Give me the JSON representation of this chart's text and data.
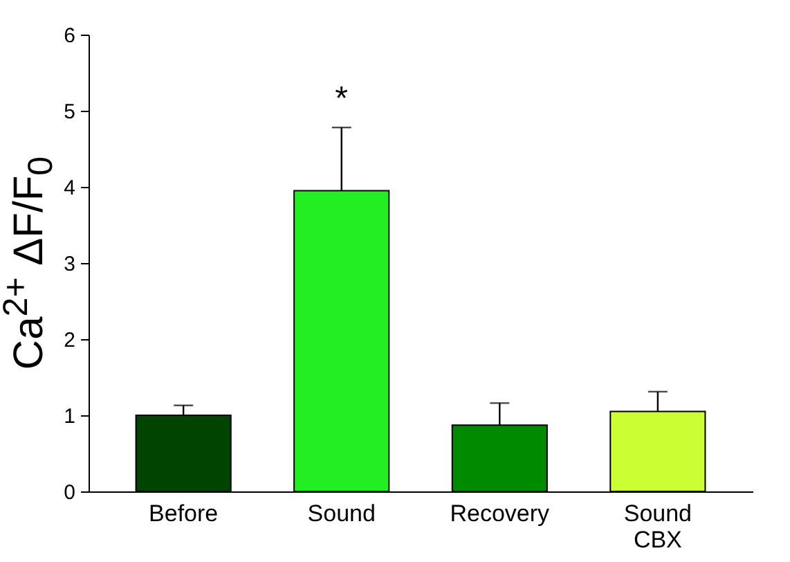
{
  "chart_data": {
    "type": "bar",
    "ylabel": "Ca$^{2+}$ ΔF/F$_{0}$",
    "categories": [
      "Before",
      "Sound",
      "Recovery",
      "Sound CBX"
    ],
    "values": [
      1.0,
      3.95,
      0.87,
      1.05
    ],
    "colors": [
      "#004400",
      "#22ee22",
      "#008a00",
      "#ccff33"
    ],
    "errors": [
      [
        1.0,
        1.13
      ],
      [
        3.95,
        4.78
      ],
      [
        0.87,
        1.16
      ],
      [
        1.05,
        1.31
      ]
    ],
    "ylim": [
      0,
      6
    ],
    "yticks": [
      0,
      1,
      2,
      3,
      4,
      5,
      6
    ],
    "grid": false,
    "annotations": [
      "*"
    ]
  }
}
